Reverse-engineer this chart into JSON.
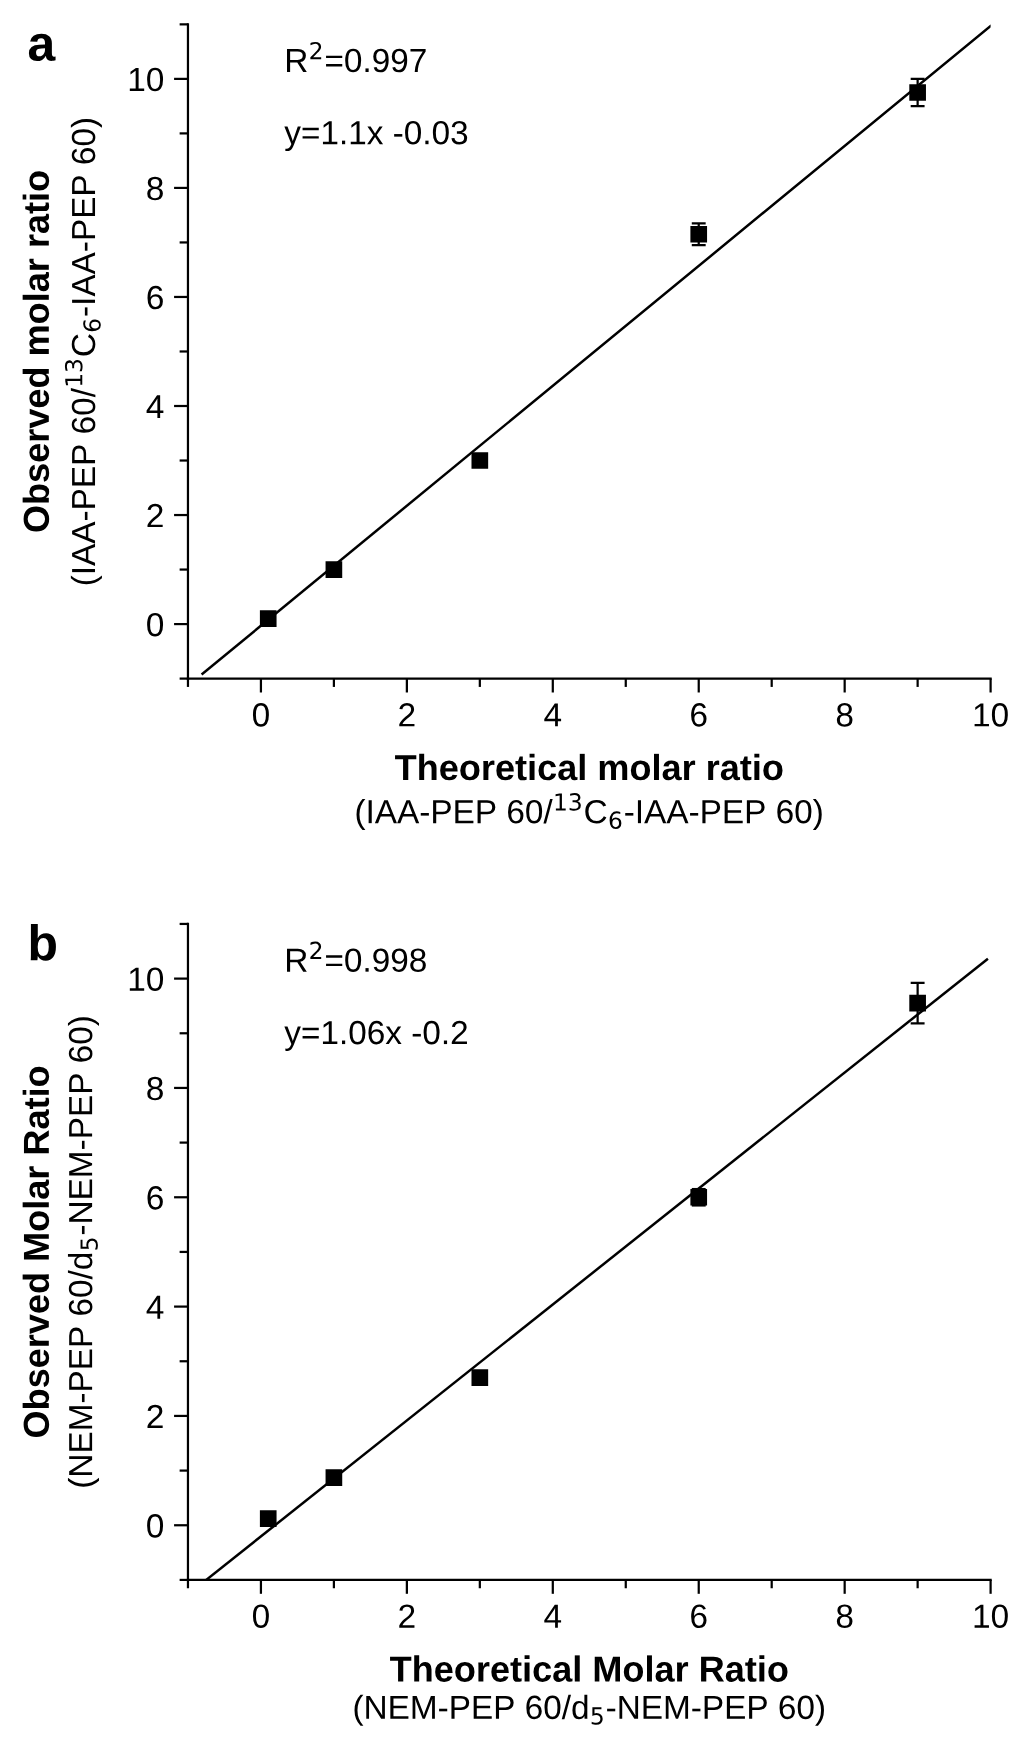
{
  "chart_data": [
    {
      "type": "scatter",
      "title": "a",
      "xlabel": "Theoretical molar ratio\n(IAA-PEP 60/$^{13}$C$_{6}$-IAA-PEP 60)",
      "ylabel": "Observed molar ratio\n(IAA-PEP 60/$^{13}$C$_{6}$-IAA-PEP 60)",
      "annotations": [
        "R$^{2}$=0.997",
        "y=1.1x -0.03"
      ],
      "xlim": [
        -1,
        10
      ],
      "ylim": [
        -1,
        11
      ],
      "xticks": [
        0,
        2,
        4,
        6,
        8,
        10
      ],
      "yticks": [
        0,
        2,
        4,
        6,
        8,
        10
      ],
      "grid": false,
      "series": [
        {
          "color": "#000000",
          "marker": "square",
          "x": [
            0.1,
            1,
            3,
            6,
            9
          ],
          "values": [
            0.1,
            1.0,
            3.0,
            7.15,
            9.75
          ],
          "errors": [
            null,
            null,
            null,
            0.2,
            0.25
          ]
        },
        {
          "type": "line",
          "color": "#000000",
          "marker": "none",
          "line_style": "solid",
          "x": [
            -0.8,
            10
          ],
          "values": [
            -0.91,
            10.97
          ]
        }
      ]
    },
    {
      "type": "scatter",
      "title": "b",
      "xlabel": "Theoretical Molar Ratio\n(NEM-PEP 60/d$_{5}$-NEM-PEP 60)",
      "ylabel": "Observed Molar Ratio\n(NEM-PEP 60/d$_{5}$-NEM-PEP 60)",
      "annotations": [
        "R$^{2}$=0.998",
        "y=1.06x -0.2"
      ],
      "xlim": [
        -1,
        10
      ],
      "ylim": [
        -1,
        11
      ],
      "xticks": [
        0,
        2,
        4,
        6,
        8,
        10
      ],
      "yticks": [
        0,
        2,
        4,
        6,
        8,
        10
      ],
      "grid": false,
      "series": [
        {
          "color": "#000000",
          "marker": "square",
          "x": [
            0.1,
            1,
            3,
            6,
            9
          ],
          "values": [
            0.12,
            0.87,
            2.7,
            6.0,
            9.55
          ],
          "errors": [
            null,
            null,
            null,
            0.15,
            0.37
          ]
        },
        {
          "type": "line",
          "color": "#000000",
          "marker": "none",
          "line_style": "solid",
          "x": [
            -0.75,
            9.95
          ],
          "values": [
            -1.0,
            10.35
          ]
        }
      ]
    }
  ]
}
